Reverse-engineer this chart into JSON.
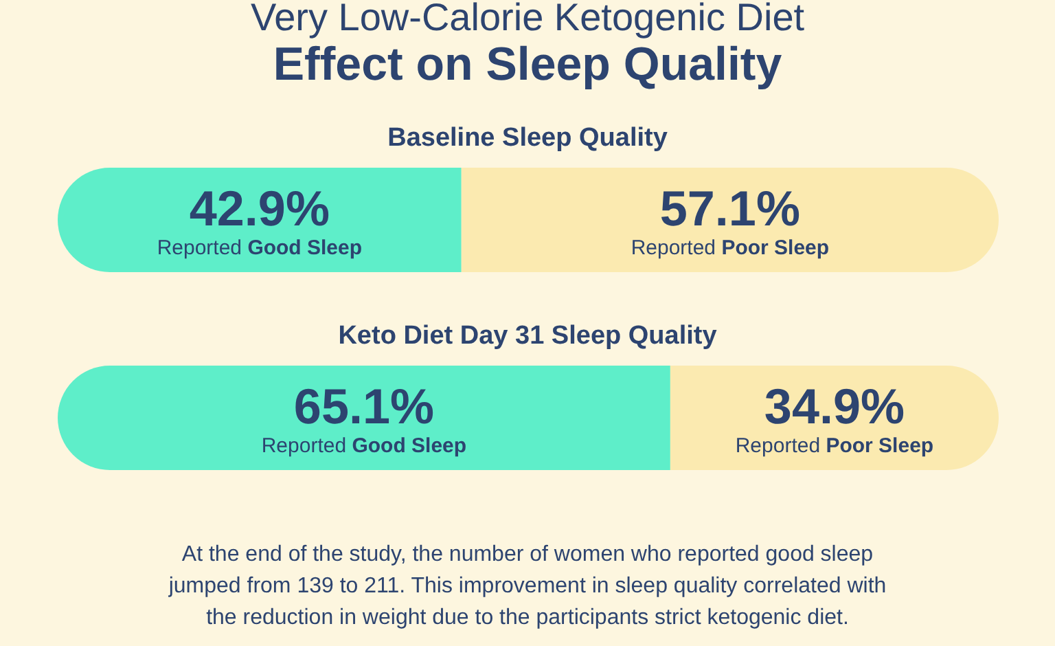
{
  "chart_data": [
    {
      "type": "other",
      "subtitle": "Very Low-Calorie Ketogenic Diet",
      "title": "Effect on Sleep Quality"
    },
    {
      "type": "bar",
      "orientation": "horizontal",
      "stacked": true,
      "title": "Baseline Sleep Quality",
      "categories": [
        null
      ],
      "xlim": [
        0,
        100
      ],
      "series": [
        {
          "name": "Reported Good Sleep",
          "color": "#5eeec9",
          "values": [
            42.9
          ],
          "value_labels": [
            "42.9%"
          ]
        },
        {
          "name": "Reported Poor Sleep",
          "color": "#fbeab0",
          "values": [
            57.1
          ],
          "value_labels": [
            "57.1%"
          ]
        }
      ]
    },
    {
      "type": "bar",
      "orientation": "horizontal",
      "stacked": true,
      "title": "Keto Diet Day 31 Sleep Quality",
      "categories": [
        null
      ],
      "xlim": [
        0,
        100
      ],
      "series": [
        {
          "name": "Reported Good Sleep",
          "color": "#5eeec9",
          "values": [
            65.1
          ],
          "value_labels": [
            "65.1%"
          ]
        },
        {
          "name": "Reported Poor Sleep",
          "color": "#fbeab0",
          "values": [
            34.9
          ],
          "value_labels": [
            "34.9%"
          ]
        }
      ],
      "annotations": [
        "At the end of the study, the number of women who reported good sleep",
        "jumped from 139 to 211. This improvement in sleep quality correlated with",
        "the reduction in weight due to the participants strict ketogenic diet."
      ]
    }
  ]
}
